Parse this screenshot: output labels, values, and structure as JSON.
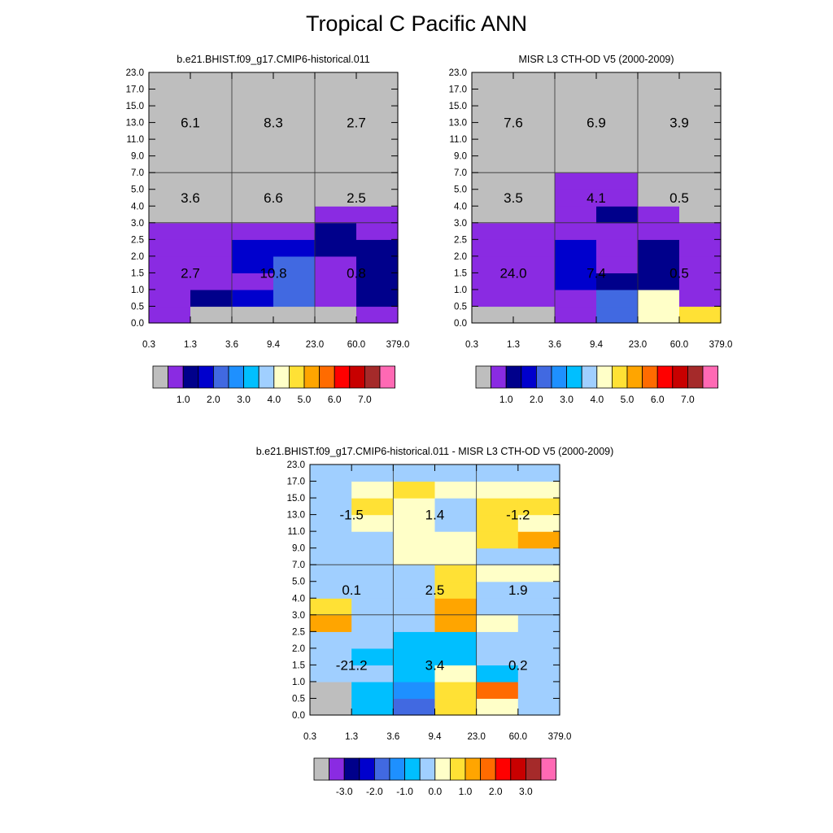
{
  "title": "Tropical C Pacific ANN",
  "x_ticks": [
    "0.3",
    "1.3",
    "3.6",
    "9.4",
    "23.0",
    "60.0",
    "379.0"
  ],
  "y_ticks": [
    "0.0",
    "0.5",
    "1.0",
    "1.5",
    "2.0",
    "2.5",
    "3.0",
    "4.0",
    "5.0",
    "7.0",
    "9.0",
    "11.0",
    "13.0",
    "15.0",
    "17.0",
    "23.0"
  ],
  "palette_main": [
    "#bebebe",
    "#8a2be2",
    "#00008b",
    "#0000cd",
    "#4169e1",
    "#1e90ff",
    "#00bfff",
    "#a0cfff",
    "#ffffc8",
    "#ffe135",
    "#ffa500",
    "#ff6b00",
    "#ff0000",
    "#c80000",
    "#a52a2a",
    "#ff69b4"
  ],
  "palette_diff": [
    "#bebebe",
    "#8a2be2",
    "#00008b",
    "#0000cd",
    "#4169e1",
    "#1e90ff",
    "#00bfff",
    "#a0cfff",
    "#ffffc8",
    "#ffe135",
    "#ffa500",
    "#ff6b00",
    "#ff0000",
    "#c80000",
    "#a52a2a",
    "#ff69b4"
  ],
  "chart_data": [
    {
      "type": "heatmap",
      "title": "b.e21.BHIST.f09_g17.CMIP6-historical.011",
      "xlabel": "",
      "ylabel": "",
      "colorbar": {
        "labels": [
          "1.0",
          "2.0",
          "3.0",
          "4.0",
          "5.0",
          "6.0",
          "7.0"
        ],
        "label_start_boundary": 2
      },
      "cells": [
        [
          1,
          1,
          1,
          1,
          1,
          1,
          0,
          0,
          0,
          0,
          0,
          0,
          0,
          0,
          0
        ],
        [
          0,
          2,
          1,
          1,
          1,
          1,
          0,
          0,
          0,
          0,
          0,
          0,
          0,
          0,
          0
        ],
        [
          0,
          3,
          1,
          3,
          3,
          1,
          0,
          0,
          0,
          0,
          0,
          0,
          0,
          0,
          0
        ],
        [
          0,
          4,
          4,
          4,
          3,
          1,
          0,
          0,
          0,
          0,
          0,
          0,
          0,
          0,
          0
        ],
        [
          0,
          1,
          1,
          1,
          2,
          2,
          1,
          0,
          0,
          0,
          0,
          0,
          0,
          0,
          0
        ],
        [
          1,
          2,
          2,
          2,
          2,
          1,
          1,
          0,
          0,
          0,
          0,
          0,
          0,
          0,
          0
        ]
      ],
      "annotations": [
        {
          "col": 0,
          "row": 12,
          "text": "6.1"
        },
        {
          "col": 2,
          "row": 12,
          "text": "8.3"
        },
        {
          "col": 4,
          "row": 12,
          "text": "2.7"
        },
        {
          "col": 0,
          "row": 7.5,
          "text": "3.6"
        },
        {
          "col": 2,
          "row": 7.5,
          "text": "6.6"
        },
        {
          "col": 4,
          "row": 7.5,
          "text": "2.5"
        },
        {
          "col": 0,
          "row": 3,
          "text": "2.7"
        },
        {
          "col": 2,
          "row": 3,
          "text": "10.8"
        },
        {
          "col": 4,
          "row": 3,
          "text": "0.8"
        }
      ]
    },
    {
      "type": "heatmap",
      "title": "MISR L3 CTH-OD V5 (2000-2009)",
      "xlabel": "",
      "ylabel": "",
      "colorbar": {
        "labels": [
          "1.0",
          "2.0",
          "3.0",
          "4.0",
          "5.0",
          "6.0",
          "7.0"
        ],
        "label_start_boundary": 2
      },
      "cells": [
        [
          0,
          1,
          1,
          1,
          1,
          1,
          0,
          0,
          0,
          0,
          0,
          0,
          0,
          0,
          0
        ],
        [
          0,
          1,
          1,
          1,
          1,
          1,
          0,
          0,
          0,
          0,
          0,
          0,
          0,
          0,
          0
        ],
        [
          1,
          1,
          3,
          3,
          3,
          1,
          1,
          1,
          1,
          0,
          0,
          0,
          0,
          0,
          0
        ],
        [
          4,
          4,
          2,
          1,
          1,
          1,
          2,
          1,
          1,
          0,
          0,
          0,
          0,
          0,
          0
        ],
        [
          8,
          8,
          2,
          2,
          2,
          1,
          1,
          0,
          0,
          0,
          0,
          0,
          0,
          0,
          0
        ],
        [
          9,
          1,
          1,
          1,
          1,
          1,
          0,
          0,
          0,
          0,
          0,
          0,
          0,
          0,
          0
        ]
      ],
      "annotations": [
        {
          "col": 0,
          "row": 12,
          "text": "7.6"
        },
        {
          "col": 2,
          "row": 12,
          "text": "6.9"
        },
        {
          "col": 4,
          "row": 12,
          "text": "3.9"
        },
        {
          "col": 0,
          "row": 7.5,
          "text": "3.5"
        },
        {
          "col": 2,
          "row": 7.5,
          "text": "4.1"
        },
        {
          "col": 4,
          "row": 7.5,
          "text": "0.5"
        },
        {
          "col": 0,
          "row": 3,
          "text": "24.0"
        },
        {
          "col": 2,
          "row": 3,
          "text": "7.4"
        },
        {
          "col": 4,
          "row": 3,
          "text": "0.5"
        }
      ]
    },
    {
      "type": "heatmap",
      "title": "b.e21.BHIST.f09_g17.CMIP6-historical.011 - MISR L3 CTH-OD V5 (2000-2009)",
      "xlabel": "",
      "ylabel": "",
      "colorbar": {
        "labels": [
          "-3.0",
          "-2.0",
          "-1.0",
          "0.0",
          "1.0",
          "2.0",
          "3.0"
        ],
        "label_start_boundary": 2
      },
      "cells": [
        [
          0,
          0,
          7,
          7,
          7,
          10,
          9,
          7,
          7,
          7,
          7,
          7,
          7,
          7,
          7
        ],
        [
          6,
          6,
          7,
          6,
          7,
          7,
          7,
          7,
          7,
          7,
          7,
          8,
          9,
          8,
          7
        ],
        [
          4,
          5,
          6,
          6,
          6,
          7,
          7,
          7,
          7,
          8,
          8,
          8,
          8,
          9,
          7
        ],
        [
          9,
          9,
          8,
          6,
          6,
          10,
          10,
          9,
          9,
          8,
          8,
          7,
          7,
          8,
          7
        ],
        [
          8,
          11,
          6,
          7,
          7,
          8,
          7,
          7,
          8,
          7,
          9,
          9,
          9,
          8,
          7
        ],
        [
          7,
          7,
          7,
          7,
          7,
          7,
          7,
          7,
          8,
          7,
          10,
          8,
          9,
          8,
          7
        ]
      ],
      "annotations": [
        {
          "col": 0,
          "row": 12,
          "text": "-1.5"
        },
        {
          "col": 2,
          "row": 12,
          "text": "1.4"
        },
        {
          "col": 4,
          "row": 12,
          "text": "-1.2"
        },
        {
          "col": 0,
          "row": 7.5,
          "text": "0.1"
        },
        {
          "col": 2,
          "row": 7.5,
          "text": "2.5"
        },
        {
          "col": 4,
          "row": 7.5,
          "text": "1.9"
        },
        {
          "col": 0,
          "row": 3,
          "text": "-21.2"
        },
        {
          "col": 2,
          "row": 3,
          "text": "3.4"
        },
        {
          "col": 4,
          "row": 3,
          "text": "0.2"
        }
      ]
    }
  ]
}
